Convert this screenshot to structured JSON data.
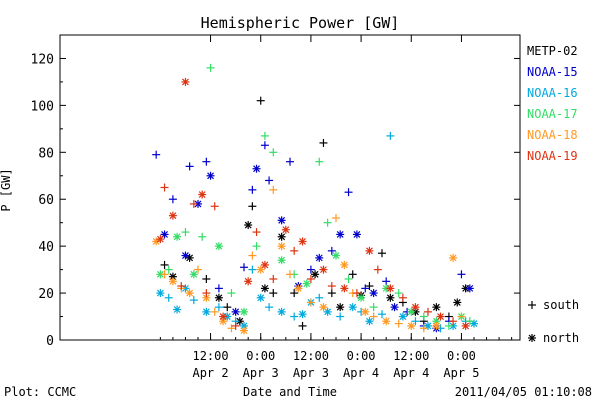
{
  "chart_data": {
    "type": "scatter",
    "title": "Hemispheric Power [GW]",
    "ylabel": "P [GW]",
    "xlabel": "Date and Time",
    "ylim": [
      0,
      130
    ],
    "xlim": [
      0,
      110
    ],
    "xlim_note_units": "hours since Apr 1 00:00",
    "yticks": [
      0,
      20,
      40,
      60,
      80,
      100,
      120
    ],
    "xticks": [
      {
        "h": 36,
        "top": "12:00",
        "bottom": "Apr 2"
      },
      {
        "h": 48,
        "top": "0:00",
        "bottom": "Apr 3"
      },
      {
        "h": 60,
        "top": "12:00",
        "bottom": "Apr 3"
      },
      {
        "h": 72,
        "top": "0:00",
        "bottom": "Apr 4"
      },
      {
        "h": 84,
        "top": "12:00",
        "bottom": "Apr 4"
      },
      {
        "h": 96,
        "top": "0:00",
        "bottom": "Apr 5"
      }
    ],
    "legend": {
      "position": "right",
      "markers_south_label": "south",
      "markers_north_label": "north"
    },
    "series": [
      {
        "name": "METP-02",
        "color": "#000000",
        "points": [
          [
            25,
            32,
            "s"
          ],
          [
            27,
            27,
            "n"
          ],
          [
            31,
            35,
            "n"
          ],
          [
            35,
            26,
            "s"
          ],
          [
            38,
            18,
            "n"
          ],
          [
            40,
            14,
            "s"
          ],
          [
            43,
            8,
            "n"
          ],
          [
            45,
            49,
            "n"
          ],
          [
            46,
            57,
            "s"
          ],
          [
            48,
            102,
            "s"
          ],
          [
            49,
            22,
            "n"
          ],
          [
            51,
            20,
            "s"
          ],
          [
            53,
            44,
            "n"
          ],
          [
            56,
            20,
            "s"
          ],
          [
            58,
            6,
            "s"
          ],
          [
            61,
            28,
            "n"
          ],
          [
            63,
            84,
            "s"
          ],
          [
            65,
            20,
            "s"
          ],
          [
            67,
            14,
            "n"
          ],
          [
            70,
            28,
            "s"
          ],
          [
            72,
            19,
            "n"
          ],
          [
            74,
            23,
            "s"
          ],
          [
            77,
            37,
            "s"
          ],
          [
            79,
            18,
            "n"
          ],
          [
            82,
            16,
            "s"
          ],
          [
            85,
            12,
            "n"
          ],
          [
            87,
            8,
            "s"
          ],
          [
            90,
            14,
            "n"
          ],
          [
            93,
            10,
            "s"
          ],
          [
            95,
            16,
            "n"
          ],
          [
            97,
            22,
            "n"
          ]
        ]
      },
      {
        "name": "NOAA-15",
        "color": "#0000cc",
        "points": [
          [
            23,
            79,
            "s"
          ],
          [
            25,
            45,
            "n"
          ],
          [
            27,
            60,
            "s"
          ],
          [
            30,
            36,
            "n"
          ],
          [
            31,
            74,
            "s"
          ],
          [
            33,
            58,
            "n"
          ],
          [
            35,
            76,
            "s"
          ],
          [
            36,
            70,
            "n"
          ],
          [
            38,
            22,
            "s"
          ],
          [
            42,
            12,
            "n"
          ],
          [
            44,
            31,
            "s"
          ],
          [
            46,
            64,
            "s"
          ],
          [
            47,
            73,
            "n"
          ],
          [
            49,
            83,
            "s"
          ],
          [
            50,
            68,
            "s"
          ],
          [
            53,
            51,
            "n"
          ],
          [
            55,
            76,
            "s"
          ],
          [
            57,
            23,
            "n"
          ],
          [
            60,
            30,
            "s"
          ],
          [
            62,
            35,
            "n"
          ],
          [
            65,
            38,
            "s"
          ],
          [
            67,
            45,
            "n"
          ],
          [
            69,
            63,
            "s"
          ],
          [
            71,
            45,
            "n"
          ],
          [
            73,
            22,
            "s"
          ],
          [
            75,
            20,
            "n"
          ],
          [
            78,
            25,
            "s"
          ],
          [
            80,
            14,
            "n"
          ],
          [
            83,
            12,
            "s"
          ],
          [
            87,
            6,
            "s"
          ],
          [
            90,
            5,
            "n"
          ],
          [
            93,
            8,
            "s"
          ],
          [
            96,
            28,
            "s"
          ],
          [
            98,
            22,
            "n"
          ]
        ]
      },
      {
        "name": "NOAA-16",
        "color": "#00aadd",
        "points": [
          [
            24,
            20,
            "n"
          ],
          [
            26,
            18,
            "s"
          ],
          [
            28,
            13,
            "n"
          ],
          [
            30,
            22,
            "n"
          ],
          [
            32,
            17,
            "s"
          ],
          [
            35,
            12,
            "n"
          ],
          [
            38,
            14,
            "s"
          ],
          [
            40,
            10,
            "n"
          ],
          [
            42,
            8,
            "s"
          ],
          [
            44,
            6,
            "n"
          ],
          [
            46,
            30,
            "s"
          ],
          [
            48,
            18,
            "n"
          ],
          [
            50,
            14,
            "s"
          ],
          [
            53,
            12,
            "n"
          ],
          [
            56,
            10,
            "s"
          ],
          [
            58,
            11,
            "n"
          ],
          [
            60,
            16,
            "n"
          ],
          [
            62,
            18,
            "s"
          ],
          [
            64,
            12,
            "n"
          ],
          [
            67,
            10,
            "s"
          ],
          [
            70,
            14,
            "n"
          ],
          [
            72,
            12,
            "s"
          ],
          [
            74,
            8,
            "n"
          ],
          [
            77,
            11,
            "s"
          ],
          [
            79,
            87,
            "s"
          ],
          [
            82,
            10,
            "n"
          ],
          [
            85,
            8,
            "s"
          ],
          [
            88,
            6,
            "n"
          ],
          [
            91,
            5,
            "s"
          ],
          [
            94,
            6,
            "n"
          ],
          [
            97,
            8,
            "s"
          ],
          [
            99,
            7,
            "n"
          ]
        ]
      },
      {
        "name": "NOAA-17",
        "color": "#33dd66",
        "points": [
          [
            24,
            28,
            "n"
          ],
          [
            26,
            30,
            "s"
          ],
          [
            28,
            44,
            "n"
          ],
          [
            30,
            46,
            "s"
          ],
          [
            32,
            28,
            "n"
          ],
          [
            34,
            44,
            "s"
          ],
          [
            36,
            116,
            "s"
          ],
          [
            38,
            40,
            "n"
          ],
          [
            41,
            20,
            "s"
          ],
          [
            44,
            12,
            "n"
          ],
          [
            47,
            40,
            "s"
          ],
          [
            49,
            87,
            "s"
          ],
          [
            51,
            80,
            "s"
          ],
          [
            53,
            34,
            "n"
          ],
          [
            56,
            28,
            "s"
          ],
          [
            59,
            24,
            "n"
          ],
          [
            62,
            76,
            "s"
          ],
          [
            64,
            50,
            "s"
          ],
          [
            66,
            36,
            "n"
          ],
          [
            69,
            26,
            "s"
          ],
          [
            72,
            18,
            "n"
          ],
          [
            75,
            14,
            "s"
          ],
          [
            78,
            22,
            "n"
          ],
          [
            81,
            20,
            "s"
          ],
          [
            84,
            12,
            "n"
          ],
          [
            87,
            10,
            "s"
          ],
          [
            90,
            8,
            "n"
          ],
          [
            93,
            6,
            "s"
          ],
          [
            96,
            10,
            "n"
          ],
          [
            98,
            8,
            "s"
          ]
        ]
      },
      {
        "name": "NOAA-18",
        "color": "#ff9922",
        "points": [
          [
            23,
            42,
            "n"
          ],
          [
            25,
            28,
            "s"
          ],
          [
            27,
            25,
            "n"
          ],
          [
            29,
            22,
            "s"
          ],
          [
            31,
            20,
            "n"
          ],
          [
            33,
            30,
            "s"
          ],
          [
            35,
            18,
            "n"
          ],
          [
            37,
            12,
            "s"
          ],
          [
            39,
            8,
            "n"
          ],
          [
            41,
            5,
            "s"
          ],
          [
            44,
            4,
            "n"
          ],
          [
            46,
            36,
            "s"
          ],
          [
            48,
            30,
            "n"
          ],
          [
            51,
            64,
            "s"
          ],
          [
            53,
            40,
            "n"
          ],
          [
            55,
            28,
            "s"
          ],
          [
            57,
            22,
            "n"
          ],
          [
            60,
            16,
            "s"
          ],
          [
            63,
            14,
            "n"
          ],
          [
            66,
            52,
            "s"
          ],
          [
            68,
            32,
            "n"
          ],
          [
            70,
            20,
            "s"
          ],
          [
            73,
            12,
            "n"
          ],
          [
            75,
            10,
            "s"
          ],
          [
            78,
            8,
            "n"
          ],
          [
            81,
            7,
            "s"
          ],
          [
            84,
            6,
            "n"
          ],
          [
            87,
            5,
            "s"
          ],
          [
            90,
            6,
            "n"
          ],
          [
            94,
            35,
            "n"
          ],
          [
            96,
            10,
            "s"
          ]
        ]
      },
      {
        "name": "NOAA-19",
        "color": "#dd3311",
        "points": [
          [
            24,
            43,
            "n"
          ],
          [
            25,
            65,
            "s"
          ],
          [
            27,
            53,
            "n"
          ],
          [
            29,
            23,
            "s"
          ],
          [
            30,
            110,
            "n"
          ],
          [
            32,
            58,
            "s"
          ],
          [
            34,
            62,
            "n"
          ],
          [
            35,
            20,
            "s"
          ],
          [
            37,
            57,
            "s"
          ],
          [
            39,
            10,
            "n"
          ],
          [
            42,
            6,
            "s"
          ],
          [
            45,
            25,
            "n"
          ],
          [
            47,
            46,
            "s"
          ],
          [
            49,
            32,
            "n"
          ],
          [
            51,
            26,
            "s"
          ],
          [
            54,
            47,
            "n"
          ],
          [
            56,
            38,
            "s"
          ],
          [
            58,
            42,
            "n"
          ],
          [
            60,
            26,
            "s"
          ],
          [
            63,
            30,
            "n"
          ],
          [
            65,
            23,
            "s"
          ],
          [
            68,
            22,
            "n"
          ],
          [
            71,
            20,
            "s"
          ],
          [
            74,
            38,
            "n"
          ],
          [
            76,
            30,
            "s"
          ],
          [
            79,
            22,
            "n"
          ],
          [
            82,
            18,
            "s"
          ],
          [
            85,
            14,
            "n"
          ],
          [
            88,
            12,
            "s"
          ],
          [
            91,
            10,
            "n"
          ],
          [
            94,
            8,
            "s"
          ],
          [
            97,
            6,
            "n"
          ]
        ]
      }
    ]
  },
  "footer": {
    "left": "Plot: CCMC",
    "center": "Date and Time",
    "right": "2011/04/05 01:10:08"
  }
}
